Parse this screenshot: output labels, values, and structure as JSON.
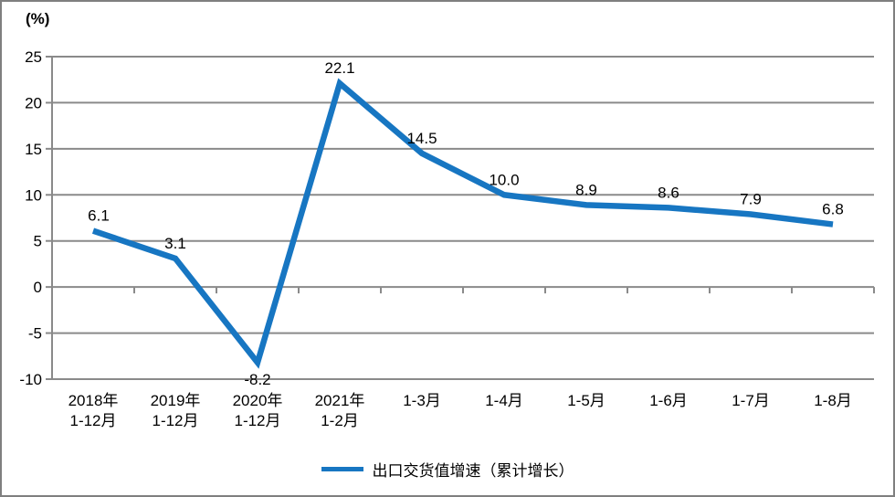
{
  "page": {
    "background": "#ffffff",
    "border_color": "#7f7f7f"
  },
  "chart_data": {
    "type": "line",
    "title": "",
    "unit_label": "(%)",
    "xlabel": "",
    "ylabel": "(%)",
    "categories": [
      "2018年1-12月",
      "2019年1-12月",
      "2020年1-12月",
      "2021年1-2月",
      "1-3月",
      "1-4月",
      "1-5月",
      "1-6月",
      "1-7月",
      "1-8月"
    ],
    "category_lines": [
      [
        "2018年",
        "1-12月"
      ],
      [
        "2019年",
        "1-12月"
      ],
      [
        "2020年",
        "1-12月"
      ],
      [
        "2021年",
        "1-2月"
      ],
      [
        "1-3月"
      ],
      [
        "1-4月"
      ],
      [
        "1-5月"
      ],
      [
        "1-6月"
      ],
      [
        "1-7月"
      ],
      [
        "1-8月"
      ]
    ],
    "series": [
      {
        "name": "出口交货值增速（累计增长）",
        "values": [
          6.1,
          3.1,
          -8.2,
          22.1,
          14.5,
          10.0,
          8.9,
          8.6,
          7.9,
          6.8
        ],
        "labels": [
          "6.1",
          "3.1",
          "-8.2",
          "22.1",
          "14.5",
          "10.0",
          "8.9",
          "8.6",
          "7.9",
          "6.8"
        ],
        "color": "#1776c2"
      }
    ],
    "ylim": [
      -10,
      25
    ],
    "yticks": [
      25,
      20,
      15,
      10,
      5,
      0,
      -5,
      -10
    ],
    "grid": true,
    "gridline_color": "#8a8a8a",
    "label_color": "#000000",
    "legend_position": "bottom"
  }
}
